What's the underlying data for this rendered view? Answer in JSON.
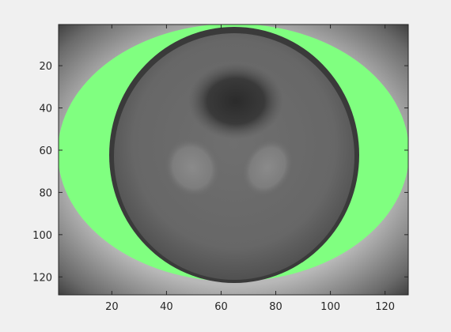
{
  "chart_data": {
    "type": "heatmap",
    "description_of_content": "grayscale image (image matrix 128x128) with a green overlay ring region",
    "title": "",
    "xlabel": "",
    "ylabel": "",
    "xlim": [
      0.5,
      128.5
    ],
    "ylim": [
      0.5,
      128.5
    ],
    "y_direction": "reverse",
    "x_ticks": [
      20,
      40,
      60,
      80,
      100,
      120
    ],
    "y_ticks": [
      20,
      40,
      60,
      80,
      100,
      120
    ],
    "x_tick_labels": [
      "20",
      "40",
      "60",
      "80",
      "100",
      "120"
    ],
    "y_tick_labels": [
      "20",
      "40",
      "60",
      "80",
      "100",
      "120"
    ],
    "grid": false,
    "legend": "none",
    "colors": {
      "overlay": "#80ff80",
      "background_figure": "#f0f0f0",
      "axis": "#262626",
      "dark": "#2a2a2a",
      "mid_gray": "#6e6e6e",
      "light_gray": "#8c8c8c"
    }
  }
}
